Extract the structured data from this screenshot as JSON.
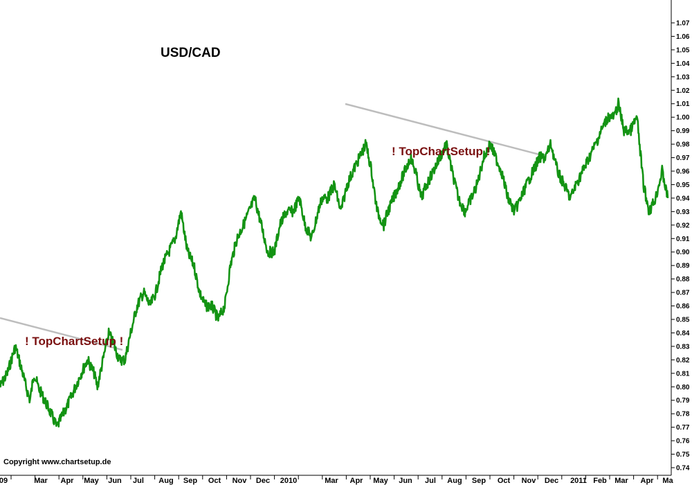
{
  "chart_data": {
    "type": "line",
    "title": "USD/CAD",
    "ylim": [
      0.74,
      1.07
    ],
    "y_ticks": [
      "0.74",
      "0.75",
      "0.76",
      "0.77",
      "0.78",
      "0.79",
      "0.80",
      "0.81",
      "0.82",
      "0.83",
      "0.84",
      "0.85",
      "0.86",
      "0.87",
      "0.88",
      "0.89",
      "0.90",
      "0.91",
      "0.92",
      "0.93",
      "0.94",
      "0.95",
      "0.96",
      "0.97",
      "0.98",
      "0.99",
      "1.00",
      "1.01",
      "1.02",
      "1.03",
      "1.04",
      "1.05",
      "1.06",
      "1.07"
    ],
    "x_ticks": [
      "09",
      "Mar",
      "Apr",
      "May",
      "Jun",
      "Jul",
      "Aug",
      "Sep",
      "Oct",
      "Nov",
      "Dec",
      "2010",
      "",
      "Mar",
      "Apr",
      "May",
      "Jun",
      "Jul",
      "Aug",
      "Sep",
      "Oct",
      "Nov",
      "Dec",
      "2011",
      "Feb",
      "Mar",
      "Apr",
      "Ma"
    ],
    "grid": false,
    "series_color": "#139313",
    "trendline_color": "#bdbdbd",
    "series": [
      {
        "x": [
          "2009-02-01",
          "2009-02-10",
          "2009-02-20",
          "2009-03-01",
          "2009-03-05",
          "2009-03-10",
          "2009-03-15",
          "2009-03-20",
          "2009-03-28",
          "2009-04-05",
          "2009-04-12",
          "2009-04-20",
          "2009-04-28",
          "2009-05-05",
          "2009-05-12",
          "2009-05-20",
          "2009-05-28",
          "2009-06-01",
          "2009-06-08",
          "2009-06-15",
          "2009-06-22",
          "2009-06-28",
          "2009-07-05",
          "2009-07-12",
          "2009-07-20",
          "2009-07-28",
          "2009-08-05",
          "2009-08-12",
          "2009-08-20",
          "2009-08-28",
          "2009-09-05",
          "2009-09-12",
          "2009-09-20",
          "2009-09-28",
          "2009-10-05",
          "2009-10-12",
          "2009-10-20",
          "2009-10-28",
          "2009-11-05",
          "2009-11-12",
          "2009-11-20",
          "2009-11-28",
          "2009-12-05",
          "2009-12-12",
          "2009-12-20",
          "2009-12-28",
          "2010-01-05",
          "2010-01-12",
          "2010-01-20",
          "2010-01-28",
          "2010-02-05",
          "2010-02-12",
          "2010-02-20",
          "2010-02-28",
          "2010-03-05",
          "2010-03-12",
          "2010-03-20",
          "2010-03-28",
          "2010-04-05",
          "2010-04-12",
          "2010-04-20",
          "2010-04-28",
          "2010-05-05",
          "2010-05-07",
          "2010-05-12",
          "2010-05-20",
          "2010-05-25",
          "2010-06-01",
          "2010-06-08",
          "2010-06-15",
          "2010-06-22",
          "2010-06-28",
          "2010-07-05",
          "2010-07-12",
          "2010-07-20",
          "2010-07-28",
          "2010-08-05",
          "2010-08-12",
          "2010-08-20",
          "2010-08-28",
          "2010-09-05",
          "2010-09-12",
          "2010-09-20",
          "2010-09-28",
          "2010-10-05",
          "2010-10-12",
          "2010-10-20",
          "2010-10-28",
          "2010-11-05",
          "2010-11-12",
          "2010-11-20",
          "2010-11-28",
          "2010-12-05",
          "2010-12-12",
          "2010-12-20",
          "2010-12-28",
          "2011-01-05",
          "2011-01-12",
          "2011-01-20",
          "2011-01-28",
          "2011-02-05",
          "2011-02-12",
          "2011-02-20",
          "2011-02-28",
          "2011-03-05",
          "2011-03-12",
          "2011-03-20",
          "2011-03-28",
          "2011-04-05",
          "2011-04-12",
          "2011-04-20",
          "2011-04-28",
          "2011-05-05"
        ],
        "y": [
          0.8,
          0.81,
          0.83,
          0.81,
          0.8,
          0.79,
          0.81,
          0.8,
          0.79,
          0.78,
          0.77,
          0.78,
          0.79,
          0.8,
          0.81,
          0.82,
          0.81,
          0.8,
          0.82,
          0.84,
          0.83,
          0.82,
          0.82,
          0.84,
          0.86,
          0.87,
          0.86,
          0.87,
          0.89,
          0.9,
          0.91,
          0.93,
          0.9,
          0.89,
          0.87,
          0.86,
          0.86,
          0.85,
          0.86,
          0.89,
          0.91,
          0.92,
          0.93,
          0.94,
          0.92,
          0.9,
          0.9,
          0.92,
          0.93,
          0.93,
          0.94,
          0.92,
          0.91,
          0.93,
          0.94,
          0.94,
          0.95,
          0.93,
          0.95,
          0.96,
          0.97,
          0.98,
          0.96,
          0.95,
          0.93,
          0.92,
          0.93,
          0.94,
          0.95,
          0.96,
          0.97,
          0.96,
          0.94,
          0.95,
          0.96,
          0.97,
          0.98,
          0.96,
          0.94,
          0.93,
          0.94,
          0.95,
          0.97,
          0.98,
          0.97,
          0.96,
          0.94,
          0.93,
          0.94,
          0.95,
          0.96,
          0.97,
          0.97,
          0.98,
          0.96,
          0.95,
          0.94,
          0.95,
          0.96,
          0.97,
          0.98,
          0.99,
          1.0,
          1.0,
          1.01,
          0.99,
          0.99,
          1.0,
          0.95,
          0.93,
          0.94,
          0.96,
          0.94
        ]
      }
    ],
    "annotations": [
      "! TopChartSetup !",
      "! TopChartSetup !"
    ],
    "copyright": "Copyright www.chartsetup.de"
  }
}
